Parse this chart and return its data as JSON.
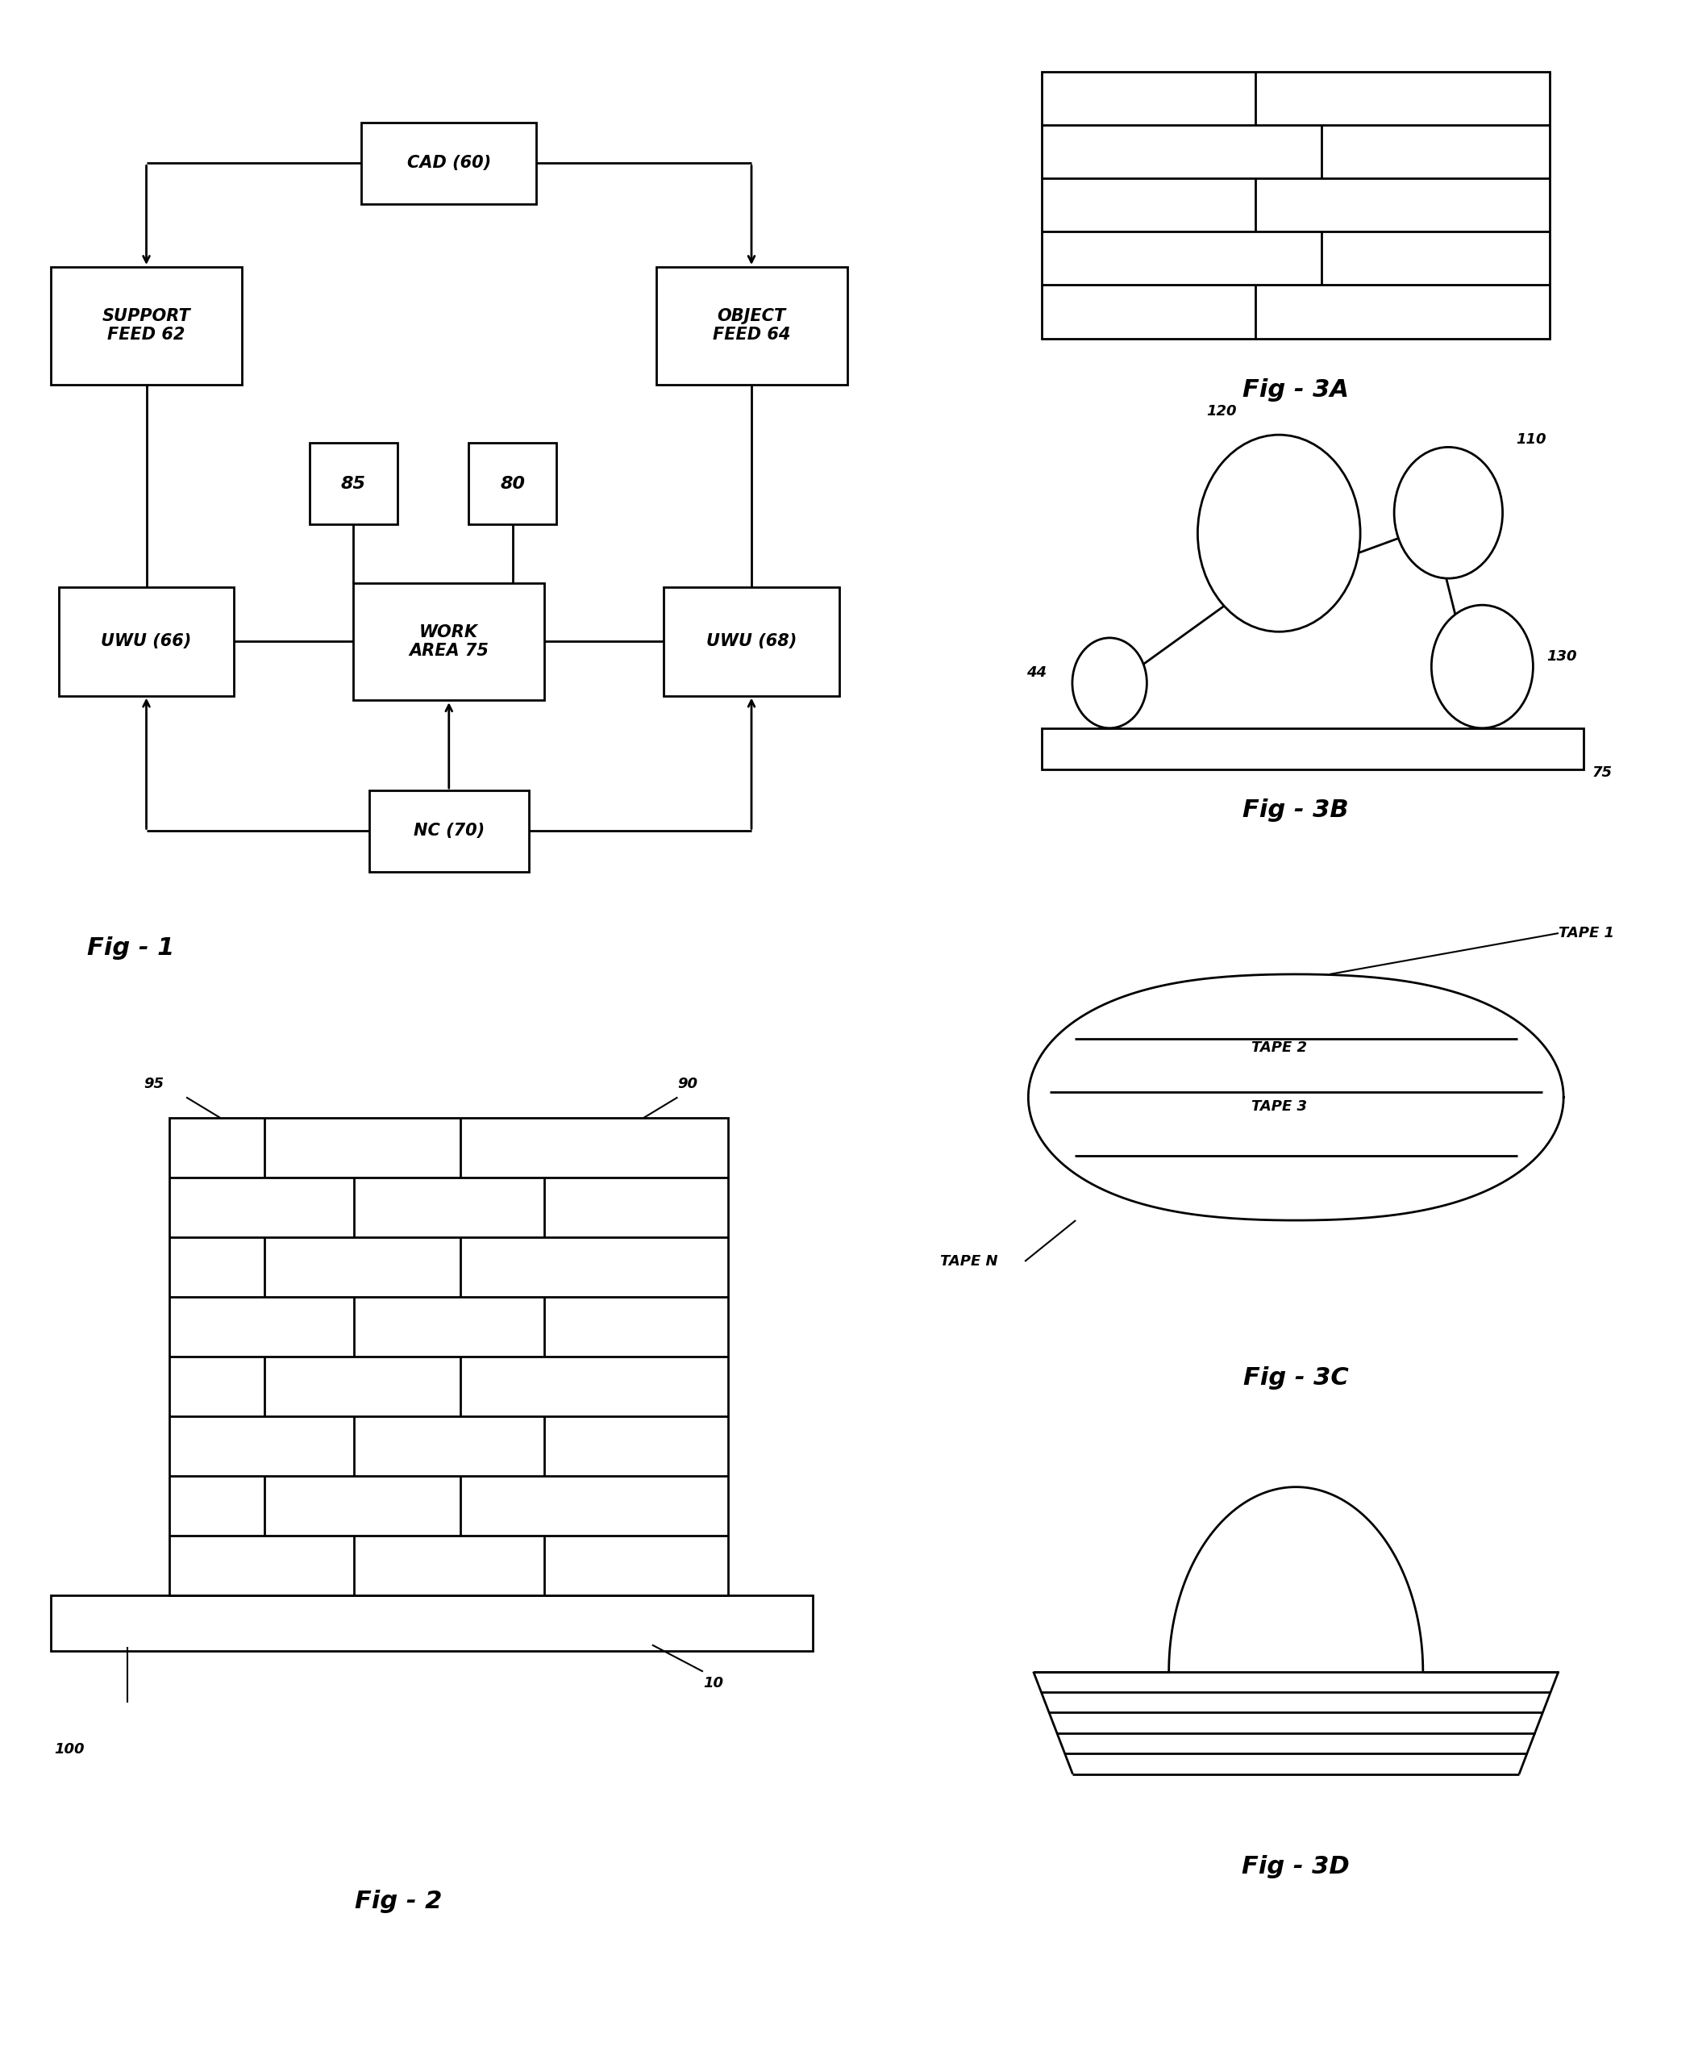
{
  "bg_color": "#ffffff",
  "fig1_title": "Fig - 1",
  "fig2_title": "Fig - 2",
  "fig3A_title": "Fig - 3A",
  "fig3B_title": "Fig - 3B",
  "fig3C_title": "Fig - 3C",
  "fig3D_title": "Fig - 3D",
  "fig3C_labels": [
    "TAPE 1",
    "TAPE 2",
    "TAPE 3",
    "TAPE N"
  ],
  "fig3B_labels": [
    "120",
    "110",
    "44",
    "130",
    "75"
  ],
  "fig2_labels": [
    "95",
    "90",
    "10",
    "100"
  ],
  "box_labels": {
    "CAD": "CAD (60)",
    "SUPPORT": "SUPPORT\nFEED 62",
    "OBJECT": "OBJECT\nFEED 64",
    "BOX85": "85",
    "BOX80": "80",
    "UWU66": "UWU (66)",
    "WORK": "WORK\nAREA 75",
    "UWU68": "UWU (68)",
    "NC": "NC (70)"
  }
}
